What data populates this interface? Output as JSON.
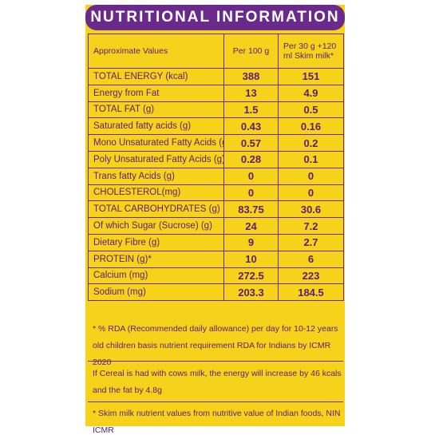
{
  "title": "NUTRITIONAL INFORMATION",
  "table": {
    "headers": [
      "Approximate Values",
      "Per 100 g",
      "Per 30 g +120 ml Skim milk*"
    ],
    "rows": [
      [
        "TOTAL ENERGY (kcal)",
        "388",
        "151"
      ],
      [
        "Energy from Fat",
        "13",
        "4.9"
      ],
      [
        "TOTAL FAT (g)",
        "1.5",
        "0.5"
      ],
      [
        "Saturated fatty acids (g)",
        "0.43",
        "0.16"
      ],
      [
        "Mono Unsaturated Fatty Acids (g)",
        "0.57",
        "0.2"
      ],
      [
        "Poly Unsaturated Fatty Acids (g)",
        "0.28",
        "0.1"
      ],
      [
        "Trans fatty Acids (g)",
        "0",
        "0"
      ],
      [
        "CHOLESTEROL(mg)",
        "0",
        "0"
      ],
      [
        "TOTAL CARBOHYDRATES (g)",
        "83.75",
        "30.6"
      ],
      [
        "Of which Sugar (Sucrose) (g)",
        "24",
        "7.2"
      ],
      [
        "Dietary Fibre (g)",
        "9",
        "2.7"
      ],
      [
        "PROTEIN (g)*",
        "10",
        "6"
      ],
      [
        "Calcium (mg)",
        "272.5",
        "223"
      ],
      [
        "Sodium (mg)",
        "203.3",
        "184.5"
      ]
    ]
  },
  "notes": {
    "rda_line1": "* % RDA (Recommended daily  allowance) per day for 10-12 years",
    "rda_line2": "old children basis nutrient requirement RDA for Indians by ICMR 2020",
    "milk_line1": "If Cereal is had with cows milk, the energy will increase by 46 kcals",
    "milk_line2": "and the fat by 4.8g",
    "skim_line": "* Skim milk nutrient values from nutritive value of Indian foods, NIN ICMR"
  },
  "colors": {
    "panel": "#f6d21a",
    "header": "#6a2a8c",
    "text": "#5a1e74"
  }
}
